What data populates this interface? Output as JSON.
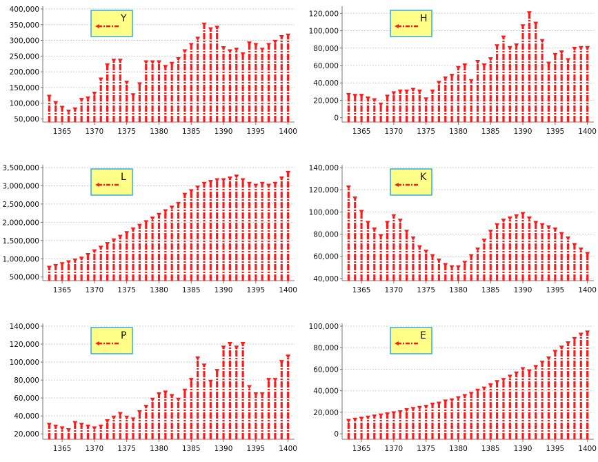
{
  "colors": {
    "series": "#ff1a1a",
    "legend_fill": "#ffff88",
    "legend_border": "#33aadd",
    "grid": "#cccccc",
    "axis": "#777777"
  },
  "chart_data": [
    {
      "type": "bar",
      "style": "dashed red drop-lines with downward triangle markers",
      "legend": {
        "label": "Y",
        "placement": "top-left"
      },
      "x": [
        1363,
        1364,
        1365,
        1366,
        1367,
        1368,
        1369,
        1370,
        1371,
        1372,
        1373,
        1374,
        1375,
        1376,
        1377,
        1378,
        1379,
        1380,
        1381,
        1382,
        1383,
        1384,
        1385,
        1386,
        1387,
        1388,
        1389,
        1390,
        1391,
        1392,
        1393,
        1394,
        1395,
        1396,
        1397,
        1398,
        1399,
        1400
      ],
      "values": [
        120000,
        100000,
        85000,
        73000,
        80000,
        110000,
        115000,
        130000,
        175000,
        220000,
        235000,
        235000,
        165000,
        125000,
        160000,
        230000,
        230000,
        230000,
        215000,
        225000,
        240000,
        265000,
        285000,
        305000,
        350000,
        335000,
        340000,
        275000,
        265000,
        270000,
        255000,
        290000,
        285000,
        270000,
        285000,
        295000,
        310000,
        315000
      ],
      "ylim": [
        40000,
        400000
      ],
      "yticks": [
        50000,
        100000,
        150000,
        200000,
        250000,
        300000,
        350000,
        400000
      ],
      "ytick_labels": [
        "50,000",
        "100,000",
        "150,000",
        "200,000",
        "250,000",
        "300,000",
        "350,000",
        "400,000"
      ],
      "xticks": [
        1365,
        1370,
        1375,
        1380,
        1385,
        1390,
        1395,
        1400
      ],
      "xlim": [
        1362,
        1401
      ],
      "grid": true
    },
    {
      "type": "bar",
      "style": "dashed red drop-lines with downward triangle markers",
      "legend": {
        "label": "H",
        "placement": "top-left"
      },
      "x": [
        1363,
        1364,
        1365,
        1366,
        1367,
        1368,
        1369,
        1370,
        1371,
        1372,
        1373,
        1374,
        1375,
        1376,
        1377,
        1378,
        1379,
        1380,
        1381,
        1382,
        1383,
        1384,
        1385,
        1386,
        1387,
        1388,
        1389,
        1390,
        1391,
        1392,
        1393,
        1394,
        1395,
        1396,
        1397,
        1398,
        1399,
        1400
      ],
      "values": [
        26000,
        25000,
        25000,
        22000,
        20000,
        15000,
        24000,
        28000,
        30000,
        30000,
        32000,
        30000,
        21000,
        30000,
        40000,
        45000,
        48000,
        57000,
        60000,
        42000,
        64000,
        60000,
        67000,
        82000,
        92000,
        80000,
        83000,
        105000,
        120000,
        108000,
        88000,
        62000,
        72000,
        75000,
        66000,
        79000,
        80000,
        80000
      ],
      "ylim": [
        -5000,
        125000
      ],
      "yticks": [
        0,
        20000,
        40000,
        60000,
        80000,
        100000,
        120000
      ],
      "ytick_labels": [
        "0",
        "20,000",
        "40,000",
        "60,000",
        "80,000",
        "100,000",
        "120,000"
      ],
      "xticks": [
        1365,
        1370,
        1375,
        1380,
        1385,
        1390,
        1395,
        1400
      ],
      "xlim": [
        1362,
        1401
      ],
      "grid": true
    },
    {
      "type": "bar",
      "style": "dashed red drop-lines with downward triangle markers",
      "legend": {
        "label": "L",
        "placement": "top-left"
      },
      "x": [
        1363,
        1364,
        1365,
        1366,
        1367,
        1368,
        1369,
        1370,
        1371,
        1372,
        1373,
        1374,
        1375,
        1376,
        1377,
        1378,
        1379,
        1380,
        1381,
        1382,
        1383,
        1384,
        1385,
        1386,
        1387,
        1388,
        1389,
        1390,
        1391,
        1392,
        1393,
        1394,
        1395,
        1396,
        1397,
        1398,
        1399,
        1400
      ],
      "values": [
        750000,
        800000,
        850000,
        900000,
        950000,
        1000000,
        1100000,
        1200000,
        1300000,
        1400000,
        1500000,
        1600000,
        1700000,
        1800000,
        1900000,
        2000000,
        2100000,
        2200000,
        2300000,
        2400000,
        2500000,
        2750000,
        2850000,
        2950000,
        3050000,
        3100000,
        3150000,
        3150000,
        3200000,
        3250000,
        3150000,
        3050000,
        3000000,
        3050000,
        3000000,
        3050000,
        3200000,
        3350000
      ],
      "ylim": [
        400000,
        3500000
      ],
      "yticks": [
        500000,
        1000000,
        1500000,
        2000000,
        2500000,
        3000000,
        3500000
      ],
      "ytick_labels": [
        "500,000",
        "1,000,000",
        "1,500,000",
        "2,000,000",
        "2,500,000",
        "3,000,000",
        "3,500,000"
      ],
      "xticks": [
        1365,
        1370,
        1375,
        1380,
        1385,
        1390,
        1395,
        1400
      ],
      "xlim": [
        1362,
        1401
      ],
      "grid": true
    },
    {
      "type": "bar",
      "style": "dashed red drop-lines with downward triangle markers",
      "legend": {
        "label": "K",
        "placement": "top-left"
      },
      "x": [
        1363,
        1364,
        1365,
        1366,
        1367,
        1368,
        1369,
        1370,
        1371,
        1372,
        1373,
        1374,
        1375,
        1376,
        1377,
        1378,
        1379,
        1380,
        1381,
        1382,
        1383,
        1384,
        1385,
        1386,
        1387,
        1388,
        1389,
        1390,
        1391,
        1392,
        1393,
        1394,
        1395,
        1396,
        1397,
        1398,
        1399,
        1400
      ],
      "values": [
        122000,
        112000,
        100000,
        90000,
        84000,
        78000,
        90000,
        96000,
        92000,
        82000,
        76000,
        68000,
        64000,
        60000,
        56000,
        52000,
        50000,
        50000,
        54000,
        60000,
        66000,
        74000,
        82000,
        88000,
        92000,
        94000,
        96000,
        98000,
        94000,
        90000,
        88000,
        86000,
        84000,
        80000,
        76000,
        70000,
        66000,
        62000
      ],
      "ylim": [
        38000,
        140000
      ],
      "yticks": [
        40000,
        60000,
        80000,
        100000,
        120000,
        140000
      ],
      "ytick_labels": [
        "40,000",
        "60,000",
        "80,000",
        "100,000",
        "120,000",
        "140,000"
      ],
      "xticks": [
        1365,
        1370,
        1375,
        1380,
        1385,
        1390,
        1395,
        1400
      ],
      "xlim": [
        1362,
        1401
      ],
      "grid": true
    },
    {
      "type": "bar",
      "style": "dashed red drop-lines with downward triangle markers",
      "legend": {
        "label": "P",
        "placement": "top-left"
      },
      "x": [
        1363,
        1364,
        1365,
        1366,
        1367,
        1368,
        1369,
        1370,
        1371,
        1372,
        1373,
        1374,
        1375,
        1376,
        1377,
        1378,
        1379,
        1380,
        1381,
        1382,
        1383,
        1384,
        1385,
        1386,
        1387,
        1388,
        1389,
        1390,
        1391,
        1392,
        1393,
        1394,
        1395,
        1396,
        1397,
        1398,
        1399,
        1400
      ],
      "values": [
        30000,
        28000,
        26000,
        24000,
        32000,
        30000,
        28000,
        26000,
        28000,
        34000,
        38000,
        42000,
        38000,
        36000,
        44000,
        50000,
        58000,
        64000,
        66000,
        62000,
        58000,
        68000,
        80000,
        104000,
        96000,
        78000,
        90000,
        116000,
        120000,
        116000,
        120000,
        72000,
        64000,
        64000,
        80000,
        80000,
        100000,
        106000
      ],
      "ylim": [
        14000,
        140000
      ],
      "yticks": [
        20000,
        40000,
        60000,
        80000,
        100000,
        120000,
        140000
      ],
      "ytick_labels": [
        "20,000",
        "40,000",
        "60,000",
        "80,000",
        "100,000",
        "120,000",
        "140,000"
      ],
      "xticks": [
        1365,
        1370,
        1375,
        1380,
        1385,
        1390,
        1395,
        1400
      ],
      "xlim": [
        1362,
        1401
      ],
      "grid": true
    },
    {
      "type": "bar",
      "style": "dashed red drop-lines with downward triangle markers",
      "legend": {
        "label": "E",
        "placement": "top-left"
      },
      "x": [
        1363,
        1364,
        1365,
        1366,
        1367,
        1368,
        1369,
        1370,
        1371,
        1372,
        1373,
        1374,
        1375,
        1376,
        1377,
        1378,
        1379,
        1380,
        1381,
        1382,
        1383,
        1384,
        1385,
        1386,
        1387,
        1388,
        1389,
        1390,
        1391,
        1392,
        1393,
        1394,
        1395,
        1396,
        1397,
        1398,
        1399,
        1400
      ],
      "values": [
        12000,
        13000,
        14000,
        15000,
        16000,
        17000,
        18000,
        19000,
        20000,
        22000,
        23000,
        24000,
        25000,
        27000,
        28000,
        30000,
        31000,
        33000,
        35000,
        37000,
        40000,
        42000,
        45000,
        48000,
        50000,
        53000,
        56000,
        60000,
        58000,
        62000,
        66000,
        70000,
        76000,
        80000,
        84000,
        88000,
        92000,
        94000
      ],
      "ylim": [
        -5000,
        100000
      ],
      "yticks": [
        0,
        20000,
        40000,
        60000,
        80000,
        100000
      ],
      "ytick_labels": [
        "0",
        "20,000",
        "40,000",
        "60,000",
        "80,000",
        "100,000"
      ],
      "xticks": [
        1365,
        1370,
        1375,
        1380,
        1385,
        1390,
        1395,
        1400
      ],
      "xlim": [
        1362,
        1401
      ],
      "grid": true
    }
  ]
}
